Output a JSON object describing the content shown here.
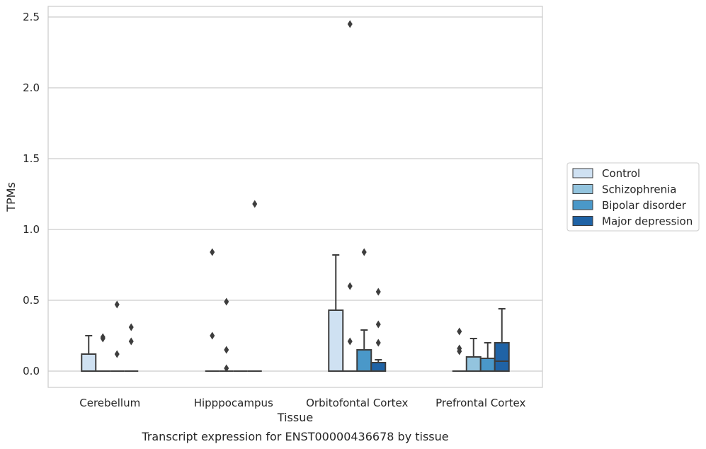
{
  "chart_data": {
    "type": "box",
    "caption": "Transcript expression for ENST00000436678 by tissue",
    "xlabel": "Tissue",
    "ylabel": "TPMs",
    "ylim": [
      -0.12,
      2.58
    ],
    "yticks": [
      0.0,
      0.5,
      1.0,
      1.5,
      2.0,
      2.5
    ],
    "ytick_labels": [
      "0.0",
      "0.5",
      "1.0",
      "1.5",
      "2.0",
      "2.5"
    ],
    "grid": true,
    "legend_position": "right",
    "categories": [
      "Cerebellum",
      "Hipppocampus",
      "Orbitofontal Cortex",
      "Prefrontal Cortex"
    ],
    "series": [
      {
        "name": "Control",
        "color": "#cfe1f2",
        "boxes": [
          {
            "q1": 0.0,
            "median": 0.0,
            "q3": 0.12,
            "whisker_low": 0.0,
            "whisker_high": 0.25,
            "outliers": []
          },
          {
            "q1": 0.0,
            "median": 0.0,
            "q3": 0.0,
            "whisker_low": 0.0,
            "whisker_high": 0.0,
            "outliers": [
              0.84,
              0.25
            ]
          },
          {
            "q1": 0.0,
            "median": 0.0,
            "q3": 0.43,
            "whisker_low": 0.0,
            "whisker_high": 0.82,
            "outliers": []
          },
          {
            "q1": 0.0,
            "median": 0.0,
            "q3": 0.0,
            "whisker_low": 0.0,
            "whisker_high": 0.0,
            "outliers": [
              0.28,
              0.16,
              0.14
            ]
          }
        ]
      },
      {
        "name": "Schizophrenia",
        "color": "#93c4de",
        "boxes": [
          {
            "q1": 0.0,
            "median": 0.0,
            "q3": 0.0,
            "whisker_low": 0.0,
            "whisker_high": 0.0,
            "outliers": [
              0.24,
              0.23
            ]
          },
          {
            "q1": 0.0,
            "median": 0.0,
            "q3": 0.0,
            "whisker_low": 0.0,
            "whisker_high": 0.0,
            "outliers": [
              0.49,
              0.15,
              0.02
            ]
          },
          {
            "q1": 0.0,
            "median": 0.0,
            "q3": 0.0,
            "whisker_low": 0.0,
            "whisker_high": 0.0,
            "outliers": [
              2.45,
              0.6,
              0.21
            ]
          },
          {
            "q1": 0.0,
            "median": 0.0,
            "q3": 0.1,
            "whisker_low": 0.0,
            "whisker_high": 0.23,
            "outliers": []
          }
        ]
      },
      {
        "name": "Bipolar disorder",
        "color": "#4a98c9",
        "boxes": [
          {
            "q1": 0.0,
            "median": 0.0,
            "q3": 0.0,
            "whisker_low": 0.0,
            "whisker_high": 0.0,
            "outliers": [
              0.47,
              0.12
            ]
          },
          {
            "q1": 0.0,
            "median": 0.0,
            "q3": 0.0,
            "whisker_low": 0.0,
            "whisker_high": 0.0,
            "outliers": []
          },
          {
            "q1": 0.0,
            "median": 0.0,
            "q3": 0.15,
            "whisker_low": 0.0,
            "whisker_high": 0.29,
            "outliers": [
              0.84
            ]
          },
          {
            "q1": 0.0,
            "median": 0.0,
            "q3": 0.09,
            "whisker_low": 0.0,
            "whisker_high": 0.2,
            "outliers": []
          }
        ]
      },
      {
        "name": "Major depression",
        "color": "#1f63a6",
        "boxes": [
          {
            "q1": 0.0,
            "median": 0.0,
            "q3": 0.0,
            "whisker_low": 0.0,
            "whisker_high": 0.0,
            "outliers": [
              0.31,
              0.21
            ]
          },
          {
            "q1": 0.0,
            "median": 0.0,
            "q3": 0.0,
            "whisker_low": 0.0,
            "whisker_high": 0.0,
            "outliers": [
              1.18
            ]
          },
          {
            "q1": 0.0,
            "median": 0.0,
            "q3": 0.06,
            "whisker_low": 0.0,
            "whisker_high": 0.08,
            "outliers": [
              0.56,
              0.33,
              0.2
            ]
          },
          {
            "q1": 0.0,
            "median": 0.07,
            "q3": 0.2,
            "whisker_low": 0.0,
            "whisker_high": 0.44,
            "outliers": []
          }
        ]
      }
    ]
  }
}
